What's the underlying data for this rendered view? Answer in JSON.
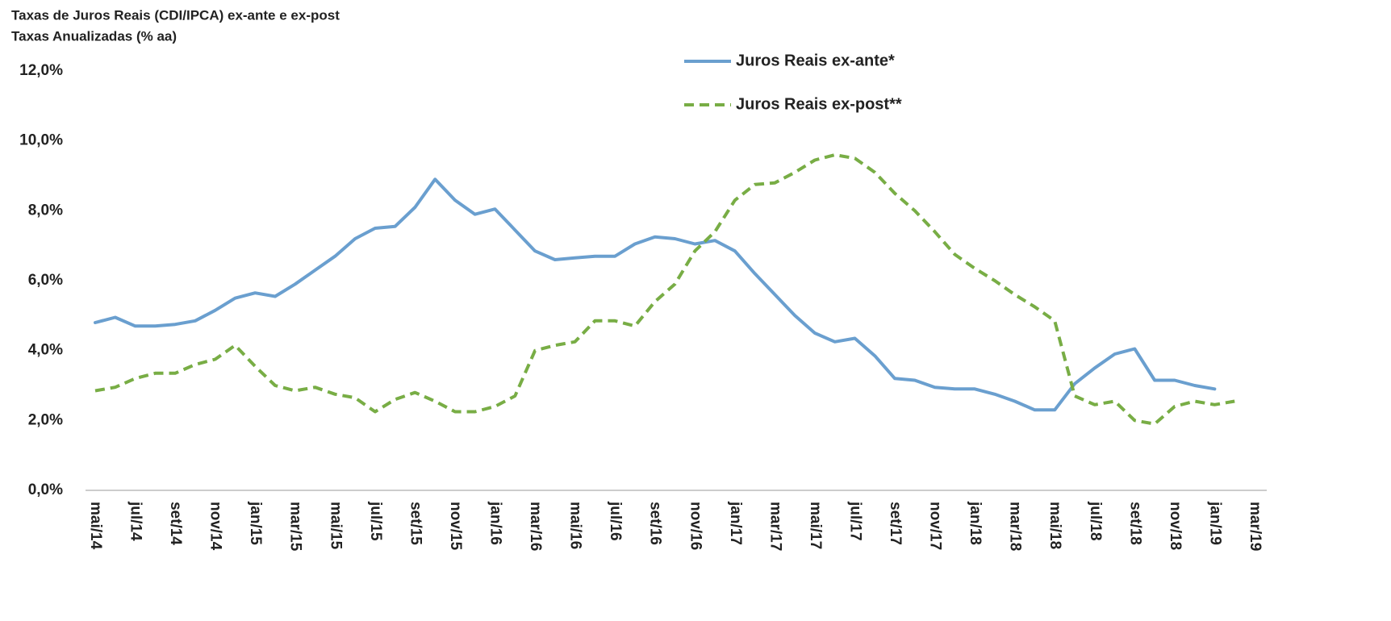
{
  "chart_data": {
    "type": "line",
    "title": "Taxas de Juros Reais (CDI/IPCA) ex-ante e ex-post",
    "subtitle": "Taxas Anualizadas (% aa)",
    "categories": [
      "mai/14",
      null,
      "jul/14",
      null,
      "set/14",
      null,
      "nov/14",
      null,
      "jan/15",
      null,
      "mar/15",
      null,
      "mai/15",
      null,
      "jul/15",
      null,
      "set/15",
      null,
      "nov/15",
      null,
      "jan/16",
      null,
      "mar/16",
      null,
      "mai/16",
      null,
      "jul/16",
      null,
      "set/16",
      null,
      "nov/16",
      null,
      "jan/17",
      null,
      "mar/17",
      null,
      "mai/17",
      null,
      "jul/17",
      null,
      "set/17",
      null,
      "nov/17",
      null,
      "jan/18",
      null,
      "mar/18",
      null,
      "mai/18",
      null,
      "jul/18",
      null,
      "set/18",
      null,
      "nov/18",
      null,
      "jan/19",
      null,
      "mar/19"
    ],
    "series": [
      {
        "name": "Juros Reais ex-ante*",
        "color": "#6a9fcf",
        "dash": false,
        "values": [
          4.8,
          4.95,
          4.7,
          4.7,
          4.75,
          4.85,
          5.15,
          5.5,
          5.65,
          5.55,
          5.9,
          6.3,
          6.7,
          7.2,
          7.5,
          7.55,
          8.1,
          8.9,
          8.3,
          7.9,
          8.05,
          7.45,
          6.85,
          6.6,
          6.65,
          6.7,
          6.7,
          7.05,
          7.25,
          7.2,
          7.05,
          7.15,
          6.85,
          6.2,
          5.6,
          5.0,
          4.5,
          4.25,
          4.35,
          3.85,
          3.2,
          3.15,
          2.95,
          2.9,
          2.9,
          2.75,
          2.55,
          2.3,
          2.3,
          3.05,
          3.5,
          3.9,
          4.05,
          3.15,
          3.15,
          3.0,
          2.9,
          null,
          null
        ]
      },
      {
        "name": "Juros Reais ex-post**",
        "color": "#78ad45",
        "dash": true,
        "values": [
          2.85,
          2.95,
          3.2,
          3.35,
          3.35,
          3.6,
          3.75,
          4.15,
          3.55,
          3.0,
          2.85,
          2.95,
          2.75,
          2.65,
          2.25,
          2.6,
          2.8,
          2.55,
          2.25,
          2.25,
          2.4,
          2.7,
          4.0,
          4.15,
          4.25,
          4.85,
          4.85,
          4.7,
          5.4,
          5.9,
          6.85,
          7.4,
          8.3,
          8.75,
          8.8,
          9.1,
          9.45,
          9.6,
          9.5,
          9.1,
          8.5,
          8.0,
          7.4,
          6.75,
          6.35,
          6.0,
          5.6,
          5.25,
          4.85,
          2.7,
          2.45,
          2.55,
          2.0,
          1.9,
          2.4,
          2.55,
          2.45,
          2.55,
          null
        ]
      }
    ],
    "ylim": [
      0,
      12
    ],
    "yticks": [
      {
        "value": 0,
        "label": "0,0%"
      },
      {
        "value": 2,
        "label": "2,0%"
      },
      {
        "value": 4,
        "label": "4,0%"
      },
      {
        "value": 6,
        "label": "6,0%"
      },
      {
        "value": 8,
        "label": "8,0%"
      },
      {
        "value": 10,
        "label": "10,0%"
      },
      {
        "value": 12,
        "label": "12,0%"
      }
    ],
    "grid": false,
    "legend": "top-right"
  }
}
